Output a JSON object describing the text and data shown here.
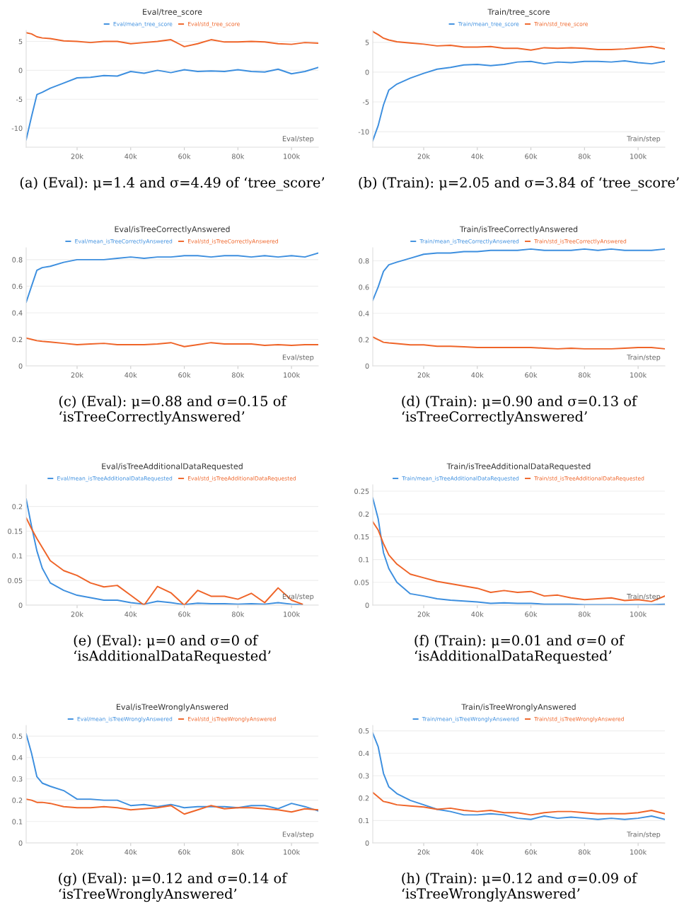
{
  "chart_data": [
    {
      "type": "line",
      "title": "Eval/tree_score",
      "xlabel": "Eval/step",
      "grid": "y",
      "legend": "top",
      "x": [
        1000,
        3000,
        5000,
        7000,
        10000,
        15000,
        20000,
        25000,
        30000,
        35000,
        40000,
        45000,
        50000,
        55000,
        60000,
        65000,
        70000,
        75000,
        80000,
        85000,
        90000,
        95000,
        100000,
        105000,
        110000
      ],
      "xlim": [
        1000,
        110000
      ],
      "xticks": [
        {
          "value": 20000,
          "label": "20k"
        },
        {
          "value": 40000,
          "label": "40k"
        },
        {
          "value": 60000,
          "label": "60k"
        },
        {
          "value": 80000,
          "label": "80k"
        },
        {
          "value": 100000,
          "label": "100k"
        }
      ],
      "ylim": [
        -13.3,
        6.9
      ],
      "yticks": [
        -10,
        -5,
        0,
        5
      ],
      "series": [
        {
          "name": "Eval/mean_tree_score",
          "color": "#3d8fdf",
          "values": [
            -12,
            -8,
            -4.2,
            -3.8,
            -3.1,
            -2.2,
            -1.3,
            -1.2,
            -0.9,
            -1.0,
            -0.2,
            -0.5,
            0,
            -0.4,
            0.1,
            -0.2,
            -0.1,
            -0.2,
            0.1,
            -0.2,
            -0.3,
            0.2,
            -0.6,
            -0.2,
            0.5
          ]
        },
        {
          "name": "Eval/std_tree_score",
          "color": "#ef6428",
          "values": [
            6.5,
            6.3,
            5.8,
            5.6,
            5.5,
            5.1,
            5.0,
            4.8,
            5.0,
            5.0,
            4.6,
            4.8,
            5.0,
            5.3,
            4.1,
            4.6,
            5.3,
            4.9,
            4.9,
            5.0,
            4.9,
            4.6,
            4.5,
            4.8,
            4.7
          ]
        }
      ],
      "annotations": [
        "(a) (Eval): μ=1.4 and σ=4.49 of ‘tree_score’"
      ]
    },
    {
      "type": "line",
      "title": "Train/tree_score",
      "xlabel": "Train/step",
      "grid": "y",
      "legend": "top",
      "x": [
        1000,
        3000,
        5000,
        7000,
        10000,
        15000,
        20000,
        25000,
        30000,
        35000,
        40000,
        45000,
        50000,
        55000,
        60000,
        65000,
        70000,
        75000,
        80000,
        85000,
        90000,
        95000,
        100000,
        105000,
        110000
      ],
      "xlim": [
        1000,
        110000
      ],
      "xticks": [
        {
          "value": 20000,
          "label": "20k"
        },
        {
          "value": 40000,
          "label": "40k"
        },
        {
          "value": 60000,
          "label": "60k"
        },
        {
          "value": 80000,
          "label": "80k"
        },
        {
          "value": 100000,
          "label": "100k"
        }
      ],
      "ylim": [
        -12.6,
        7.0
      ],
      "yticks": [
        -10,
        -5,
        0,
        5
      ],
      "series": [
        {
          "name": "Train/mean_tree_score",
          "color": "#3d8fdf",
          "values": [
            -11.5,
            -9,
            -5.5,
            -3,
            -2,
            -1,
            -0.2,
            0.5,
            0.8,
            1.2,
            1.3,
            1.1,
            1.3,
            1.7,
            1.8,
            1.4,
            1.7,
            1.6,
            1.8,
            1.8,
            1.7,
            1.9,
            1.6,
            1.4,
            1.8
          ]
        },
        {
          "name": "Train/std_tree_score",
          "color": "#ef6428",
          "values": [
            6.8,
            6.3,
            5.7,
            5.4,
            5.1,
            4.9,
            4.7,
            4.4,
            4.5,
            4.2,
            4.2,
            4.3,
            4.0,
            4.0,
            3.7,
            4.1,
            4.0,
            4.1,
            4.0,
            3.8,
            3.8,
            3.9,
            4.1,
            4.3,
            3.9
          ]
        }
      ],
      "annotations": [
        "(b) (Train): μ=2.05 and σ=3.84 of ‘tree_score’"
      ]
    },
    {
      "type": "line",
      "title": "Eval/isTreeCorrectlyAnswered",
      "xlabel": "Eval/step",
      "grid": "y",
      "legend": "top",
      "x": [
        1000,
        3000,
        5000,
        7000,
        10000,
        15000,
        20000,
        25000,
        30000,
        35000,
        40000,
        45000,
        50000,
        55000,
        60000,
        65000,
        70000,
        75000,
        80000,
        85000,
        90000,
        95000,
        100000,
        105000,
        110000
      ],
      "xlim": [
        1000,
        110000
      ],
      "xticks": [
        {
          "value": 20000,
          "label": "20k"
        },
        {
          "value": 40000,
          "label": "40k"
        },
        {
          "value": 60000,
          "label": "60k"
        },
        {
          "value": 80000,
          "label": "80k"
        },
        {
          "value": 100000,
          "label": "100k"
        }
      ],
      "ylim": [
        0,
        0.89
      ],
      "yticks": [
        0,
        0.2,
        0.4,
        0.6,
        0.8
      ],
      "series": [
        {
          "name": "Eval/mean_isTreeCorrectlyAnswered",
          "color": "#3d8fdf",
          "values": [
            0.48,
            0.6,
            0.72,
            0.74,
            0.75,
            0.78,
            0.8,
            0.8,
            0.8,
            0.81,
            0.82,
            0.81,
            0.82,
            0.82,
            0.83,
            0.83,
            0.82,
            0.83,
            0.83,
            0.82,
            0.83,
            0.82,
            0.83,
            0.82,
            0.85
          ]
        },
        {
          "name": "Eval/std_isTreeCorrectlyAnswered",
          "color": "#ef6428",
          "values": [
            0.21,
            0.2,
            0.19,
            0.185,
            0.18,
            0.17,
            0.16,
            0.165,
            0.17,
            0.16,
            0.16,
            0.16,
            0.165,
            0.175,
            0.145,
            0.16,
            0.175,
            0.165,
            0.165,
            0.165,
            0.155,
            0.16,
            0.155,
            0.16,
            0.16
          ]
        }
      ],
      "annotations": [
        "(c) (Eval): μ=0.88 and σ=0.15 of ‘isTreeCorrectlyAnswered’"
      ]
    },
    {
      "type": "line",
      "title": "Train/isTreeCorrectlyAnswered",
      "xlabel": "Train/step",
      "grid": "y",
      "legend": "top",
      "x": [
        1000,
        3000,
        5000,
        7000,
        10000,
        15000,
        20000,
        25000,
        30000,
        35000,
        40000,
        45000,
        50000,
        55000,
        60000,
        65000,
        70000,
        75000,
        80000,
        85000,
        90000,
        95000,
        100000,
        105000,
        110000
      ],
      "xlim": [
        1000,
        110000
      ],
      "xticks": [
        {
          "value": 20000,
          "label": "20k"
        },
        {
          "value": 40000,
          "label": "40k"
        },
        {
          "value": 60000,
          "label": "60k"
        },
        {
          "value": 80000,
          "label": "80k"
        },
        {
          "value": 100000,
          "label": "100k"
        }
      ],
      "ylim": [
        0,
        0.9
      ],
      "yticks": [
        0,
        0.2,
        0.4,
        0.6,
        0.8
      ],
      "series": [
        {
          "name": "Train/mean_isTreeCorrectlyAnswered",
          "color": "#3d8fdf",
          "values": [
            0.5,
            0.6,
            0.72,
            0.77,
            0.79,
            0.82,
            0.85,
            0.86,
            0.86,
            0.87,
            0.87,
            0.88,
            0.88,
            0.88,
            0.89,
            0.88,
            0.88,
            0.88,
            0.89,
            0.88,
            0.89,
            0.88,
            0.88,
            0.88,
            0.89
          ]
        },
        {
          "name": "Train/std_isTreeCorrectlyAnswered",
          "color": "#ef6428",
          "values": [
            0.22,
            0.2,
            0.18,
            0.175,
            0.17,
            0.16,
            0.16,
            0.15,
            0.15,
            0.145,
            0.14,
            0.14,
            0.14,
            0.14,
            0.14,
            0.135,
            0.13,
            0.135,
            0.13,
            0.13,
            0.13,
            0.135,
            0.14,
            0.14,
            0.13
          ]
        }
      ],
      "annotations": [
        "(d) (Train): μ=0.90 and σ=0.13 of ‘isTreeCorrectlyAnswered’"
      ]
    },
    {
      "type": "line",
      "title": "Eval/isTreeAdditionalDataRequested",
      "xlabel": "Eval/step",
      "grid": "y",
      "legend": "top",
      "x": [
        1000,
        3000,
        5000,
        7000,
        10000,
        15000,
        20000,
        25000,
        30000,
        35000,
        40000,
        45000,
        50000,
        55000,
        60000,
        65000,
        70000,
        75000,
        80000,
        85000,
        90000,
        95000,
        100000,
        104000
      ],
      "xlim": [
        1000,
        110000
      ],
      "xticks": [
        {
          "value": 20000,
          "label": "20k"
        },
        {
          "value": 40000,
          "label": "40k"
        },
        {
          "value": 60000,
          "label": "60k"
        },
        {
          "value": 80000,
          "label": "80k"
        },
        {
          "value": 100000,
          "label": "100k"
        }
      ],
      "ylim": [
        0,
        0.244
      ],
      "yticks": [
        0,
        0.05,
        0.1,
        0.15,
        0.2
      ],
      "series": [
        {
          "name": "Eval/mean_isTreeAdditionalDataRequested",
          "color": "#3d8fdf",
          "values": [
            0.215,
            0.16,
            0.11,
            0.075,
            0.045,
            0.03,
            0.02,
            0.015,
            0.01,
            0.01,
            0.005,
            0.002,
            0.008,
            0.005,
            0.001,
            0.004,
            0.003,
            0.003,
            0.002,
            0.003,
            0.002,
            0.005,
            0.002,
            0.001
          ]
        },
        {
          "name": "Eval/std_isTreeAdditionalDataRequested",
          "color": "#ef6428",
          "values": [
            0.177,
            0.155,
            0.135,
            0.117,
            0.09,
            0.07,
            0.06,
            0.045,
            0.037,
            0.04,
            0.02,
            0.0,
            0.038,
            0.025,
            0.0,
            0.03,
            0.018,
            0.018,
            0.012,
            0.024,
            0.005,
            0.035,
            0.01,
            0.002
          ]
        }
      ],
      "annotations": [
        "(e) (Eval): μ=0 and σ=0 of ‘isAdditionalDataRequested’"
      ]
    },
    {
      "type": "line",
      "title": "Train/isTreeAdditionalDataRequested",
      "xlabel": "Train/step",
      "grid": "y",
      "legend": "top",
      "x": [
        1000,
        3000,
        5000,
        7000,
        10000,
        15000,
        20000,
        25000,
        30000,
        35000,
        40000,
        45000,
        50000,
        55000,
        60000,
        65000,
        70000,
        75000,
        80000,
        85000,
        90000,
        95000,
        100000,
        105000,
        110000
      ],
      "xlim": [
        1000,
        110000
      ],
      "xticks": [
        {
          "value": 20000,
          "label": "20k"
        },
        {
          "value": 40000,
          "label": "40k"
        },
        {
          "value": 60000,
          "label": "60k"
        },
        {
          "value": 80000,
          "label": "80k"
        },
        {
          "value": 100000,
          "label": "100k"
        }
      ],
      "ylim": [
        0,
        0.264
      ],
      "yticks": [
        0,
        0.05,
        0.1,
        0.15,
        0.2,
        0.25
      ],
      "series": [
        {
          "name": "Train/mean_isTreeAdditionalDataRequested",
          "color": "#3d8fdf",
          "values": [
            0.235,
            0.19,
            0.115,
            0.08,
            0.05,
            0.025,
            0.02,
            0.014,
            0.011,
            0.009,
            0.007,
            0.004,
            0.005,
            0.004,
            0.004,
            0.002,
            0.002,
            0.002,
            0.001,
            0.001,
            0.001,
            0.001,
            0.001,
            0.001,
            0.002
          ]
        },
        {
          "name": "Train/std_isTreeAdditionalDataRequested",
          "color": "#ef6428",
          "values": [
            0.183,
            0.165,
            0.135,
            0.11,
            0.09,
            0.068,
            0.06,
            0.052,
            0.047,
            0.042,
            0.037,
            0.028,
            0.032,
            0.028,
            0.03,
            0.02,
            0.022,
            0.016,
            0.012,
            0.014,
            0.016,
            0.01,
            0.012,
            0.008,
            0.02
          ]
        }
      ],
      "annotations": [
        "(f) (Train): μ=0.01 and σ=0 of ‘isAdditionalDataRequested’"
      ]
    },
    {
      "type": "line",
      "title": "Eval/isTreeWronglyAnswered",
      "xlabel": "Eval/step",
      "grid": "y",
      "legend": "top",
      "x": [
        1000,
        3000,
        5000,
        7000,
        10000,
        15000,
        20000,
        25000,
        30000,
        35000,
        40000,
        45000,
        50000,
        55000,
        60000,
        65000,
        70000,
        75000,
        80000,
        85000,
        90000,
        95000,
        100000,
        105000,
        110000
      ],
      "xlim": [
        1000,
        110000
      ],
      "xticks": [
        {
          "value": 20000,
          "label": "20k"
        },
        {
          "value": 40000,
          "label": "40k"
        },
        {
          "value": 60000,
          "label": "60k"
        },
        {
          "value": 80000,
          "label": "80k"
        },
        {
          "value": 100000,
          "label": "100k"
        }
      ],
      "ylim": [
        0,
        0.55
      ],
      "yticks": [
        0,
        0.1,
        0.2,
        0.3,
        0.4,
        0.5
      ],
      "series": [
        {
          "name": "Eval/mean_isTreeWronglyAnswered",
          "color": "#3d8fdf",
          "values": [
            0.51,
            0.42,
            0.31,
            0.28,
            0.265,
            0.245,
            0.205,
            0.205,
            0.2,
            0.2,
            0.175,
            0.18,
            0.17,
            0.18,
            0.165,
            0.17,
            0.17,
            0.17,
            0.165,
            0.175,
            0.175,
            0.16,
            0.185,
            0.17,
            0.15
          ]
        },
        {
          "name": "Eval/std_isTreeWronglyAnswered",
          "color": "#ef6428",
          "values": [
            0.205,
            0.2,
            0.19,
            0.19,
            0.185,
            0.17,
            0.165,
            0.165,
            0.17,
            0.165,
            0.155,
            0.16,
            0.165,
            0.175,
            0.135,
            0.155,
            0.175,
            0.16,
            0.165,
            0.165,
            0.16,
            0.155,
            0.145,
            0.16,
            0.155
          ]
        }
      ],
      "annotations": [
        "(g) (Eval): μ=0.12 and σ=0.14 of ‘isTreeWronglyAnswered’"
      ]
    },
    {
      "type": "line",
      "title": "Train/isTreeWronglyAnswered",
      "xlabel": "Train/step",
      "grid": "y",
      "legend": "top",
      "x": [
        1000,
        3000,
        5000,
        7000,
        10000,
        15000,
        20000,
        25000,
        30000,
        35000,
        40000,
        45000,
        50000,
        55000,
        60000,
        65000,
        70000,
        75000,
        80000,
        85000,
        90000,
        95000,
        100000,
        105000,
        110000
      ],
      "xlim": [
        1000,
        110000
      ],
      "xticks": [
        {
          "value": 20000,
          "label": "20k"
        },
        {
          "value": 40000,
          "label": "40k"
        },
        {
          "value": 60000,
          "label": "60k"
        },
        {
          "value": 80000,
          "label": "80k"
        },
        {
          "value": 100000,
          "label": "100k"
        }
      ],
      "ylim": [
        0,
        0.524
      ],
      "yticks": [
        0,
        0.1,
        0.2,
        0.3,
        0.4,
        0.5
      ],
      "series": [
        {
          "name": "Train/mean_isTreeWronglyAnswered",
          "color": "#3d8fdf",
          "values": [
            0.49,
            0.43,
            0.31,
            0.25,
            0.22,
            0.19,
            0.17,
            0.15,
            0.14,
            0.125,
            0.125,
            0.13,
            0.125,
            0.11,
            0.105,
            0.12,
            0.11,
            0.115,
            0.11,
            0.105,
            0.11,
            0.105,
            0.11,
            0.12,
            0.105
          ]
        },
        {
          "name": "Train/std_isTreeWronglyAnswered",
          "color": "#ef6428",
          "values": [
            0.225,
            0.205,
            0.185,
            0.18,
            0.17,
            0.165,
            0.16,
            0.15,
            0.155,
            0.145,
            0.14,
            0.145,
            0.135,
            0.135,
            0.125,
            0.135,
            0.14,
            0.14,
            0.135,
            0.13,
            0.13,
            0.13,
            0.135,
            0.145,
            0.13
          ]
        }
      ],
      "annotations": [
        "(h) (Train): μ=0.12 and σ=0.09 of ‘isTreeWronglyAnswered’"
      ]
    }
  ]
}
